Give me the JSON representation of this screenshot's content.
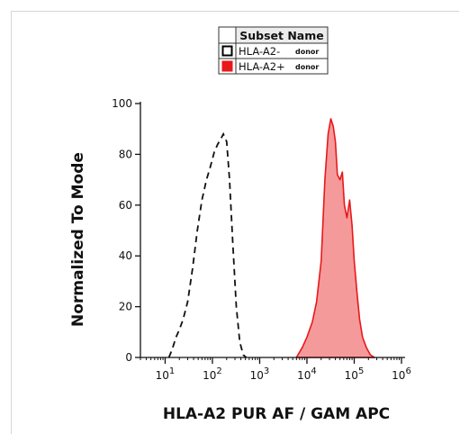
{
  "chart_data": {
    "type": "histogram",
    "title": "",
    "xlabel": "HLA-A2 PUR AF / GAM APC",
    "ylabel": "Normalized To Mode",
    "x_scale": "log",
    "xlim": [
      3,
      1000000
    ],
    "ylim": [
      0,
      100
    ],
    "y_ticks": [
      0,
      20,
      40,
      60,
      80,
      100
    ],
    "x_ticks": [
      {
        "base": "10",
        "exp": "1",
        "value": 10
      },
      {
        "base": "10",
        "exp": "2",
        "value": 100
      },
      {
        "base": "10",
        "exp": "3",
        "value": 1000
      },
      {
        "base": "10",
        "exp": "4",
        "value": 10000
      },
      {
        "base": "10",
        "exp": "5",
        "value": 100000
      },
      {
        "base": "10",
        "exp": "6",
        "value": 1000000
      }
    ],
    "legend": {
      "header": "Subset Name",
      "placement": "top-center",
      "entries": [
        {
          "label": "HLA-A2-",
          "tag": "donor",
          "style": "open-dashed",
          "color": "#000000"
        },
        {
          "label": "HLA-A2+",
          "tag": "donor",
          "style": "filled",
          "color": "#e8181b"
        }
      ]
    },
    "series": [
      {
        "name": "HLA-A2-",
        "style": "dashed",
        "color": "#111111",
        "x": [
          12,
          14,
          17,
          20,
          24,
          30,
          38,
          48,
          60,
          75,
          90,
          110,
          130,
          150,
          170,
          200,
          230,
          270,
          320,
          380,
          450,
          520
        ],
        "y": [
          0,
          3,
          8,
          11,
          15,
          22,
          35,
          50,
          62,
          70,
          75,
          81,
          84,
          86,
          88,
          85,
          70,
          45,
          20,
          6,
          1,
          0
        ]
      },
      {
        "name": "HLA-A2+",
        "style": "filled",
        "color": "#e8181b",
        "fill": "#f59a9a",
        "x": [
          6000,
          8000,
          10000,
          13000,
          16000,
          20000,
          24000,
          28000,
          32000,
          36000,
          40000,
          44000,
          50000,
          56000,
          62000,
          70000,
          80000,
          90000,
          100000,
          115000,
          130000,
          150000,
          180000,
          220000,
          270000
        ],
        "y": [
          0,
          4,
          8,
          14,
          22,
          38,
          70,
          88,
          94,
          91,
          85,
          72,
          70,
          73,
          60,
          55,
          62,
          52,
          38,
          25,
          15,
          8,
          4,
          1,
          0
        ]
      }
    ]
  }
}
